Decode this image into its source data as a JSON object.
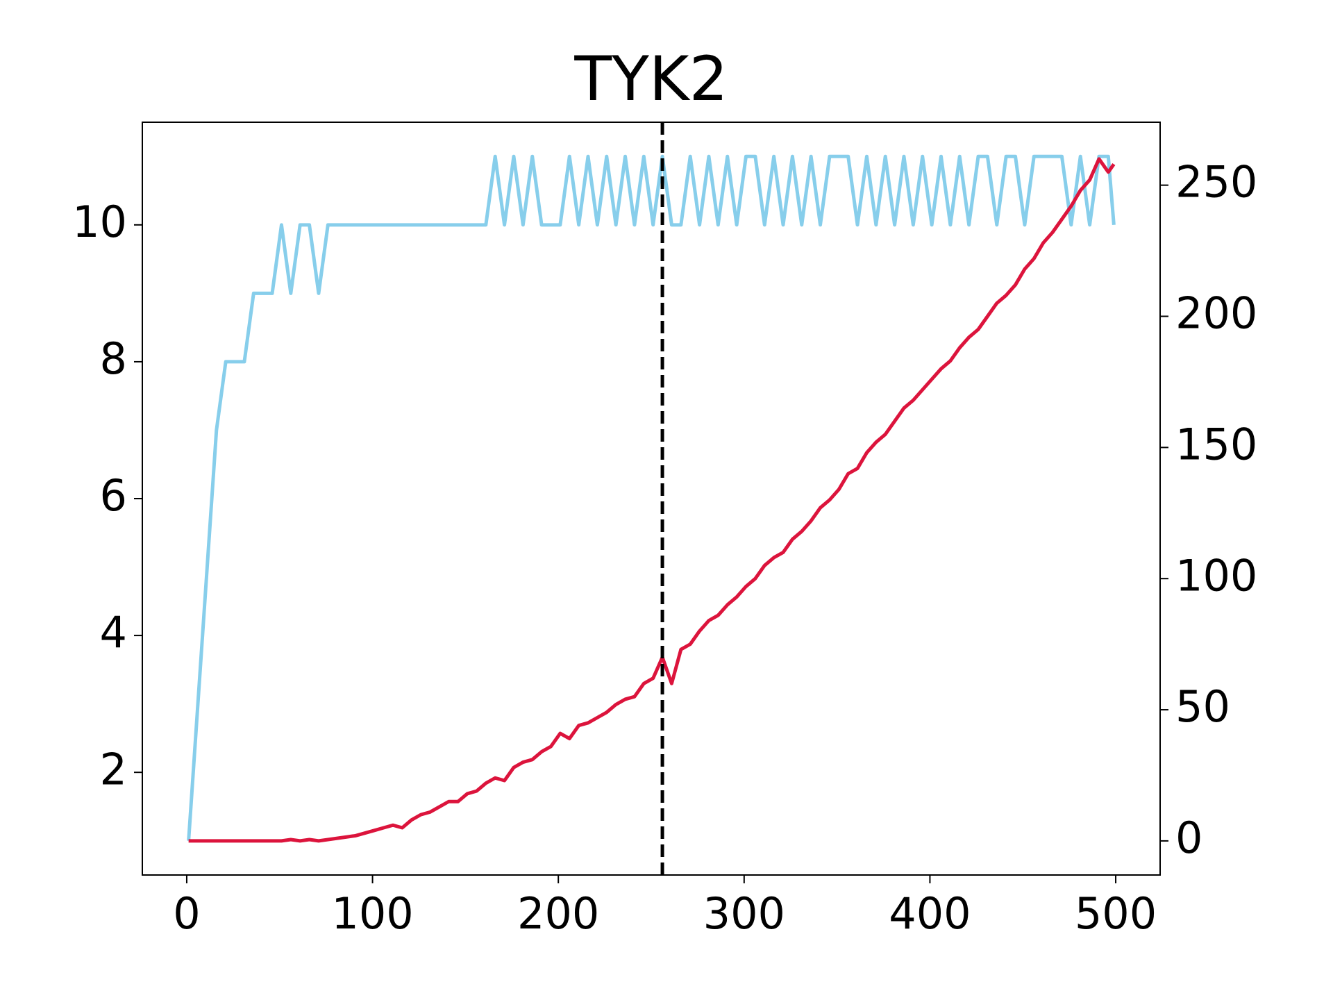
{
  "chart_data": {
    "type": "line",
    "title": "TYK2",
    "x": [
      1,
      6,
      11,
      16,
      21,
      26,
      31,
      36,
      41,
      46,
      51,
      56,
      61,
      66,
      71,
      76,
      81,
      86,
      91,
      96,
      101,
      106,
      111,
      116,
      121,
      126,
      131,
      136,
      141,
      146,
      151,
      156,
      161,
      166,
      171,
      176,
      181,
      186,
      191,
      196,
      201,
      206,
      211,
      216,
      221,
      226,
      231,
      236,
      241,
      246,
      251,
      256,
      261,
      266,
      271,
      276,
      281,
      286,
      291,
      296,
      301,
      306,
      311,
      316,
      321,
      326,
      331,
      336,
      341,
      346,
      351,
      356,
      361,
      366,
      371,
      376,
      381,
      386,
      391,
      396,
      401,
      406,
      411,
      416,
      421,
      426,
      431,
      436,
      441,
      446,
      451,
      456,
      461,
      466,
      471,
      476,
      481,
      486,
      491,
      496,
      499
    ],
    "series": [
      {
        "color": "#87ceeb",
        "values": [
          1,
          3,
          5,
          7,
          8,
          8,
          8,
          9,
          9,
          9,
          10,
          9,
          10,
          10,
          9,
          10,
          10,
          10,
          10,
          10,
          10,
          10,
          10,
          10,
          10,
          10,
          10,
          10,
          10,
          10,
          10,
          10,
          10,
          11,
          10,
          11,
          10,
          11,
          10,
          10,
          10,
          11,
          10,
          11,
          10,
          11,
          10,
          11,
          10,
          11,
          10,
          11,
          10,
          10,
          11,
          10,
          11,
          10,
          11,
          10,
          11,
          11,
          10,
          11,
          10,
          11,
          10,
          11,
          10,
          11,
          11,
          11,
          10,
          11,
          10,
          11,
          10,
          11,
          10,
          11,
          10,
          11,
          10,
          11,
          10,
          11,
          11,
          10,
          11,
          11,
          10,
          11,
          11,
          11,
          11,
          10,
          11,
          10,
          11,
          11,
          10
        ]
      },
      {
        "color": "#dc143c",
        "axis": "y2",
        "values": [
          0,
          0,
          0,
          0,
          0,
          0,
          0,
          0,
          0,
          0,
          0,
          0.5,
          0,
          0.5,
          0,
          0.5,
          1,
          1.5,
          2,
          3,
          4,
          5,
          6,
          5,
          8,
          10,
          11,
          13,
          15,
          15,
          18,
          19,
          22,
          24,
          23,
          28,
          30,
          31,
          34,
          36,
          41,
          39,
          44,
          45,
          47,
          49,
          52,
          54,
          55,
          60,
          62,
          70,
          60,
          73,
          75,
          80,
          84,
          86,
          90,
          93,
          97,
          100,
          105,
          108,
          110,
          115,
          118,
          122,
          127,
          130,
          134,
          140,
          142,
          148,
          152,
          155,
          160,
          165,
          168,
          172,
          176,
          180,
          183,
          188,
          192,
          195,
          200,
          205,
          208,
          212,
          218,
          222,
          228,
          232,
          237,
          242,
          248,
          252,
          260,
          255,
          258
        ]
      }
    ],
    "vline": 256,
    "xlim": [
      -23.9,
      523.9
    ],
    "xticks": [
      0,
      100,
      200,
      300,
      400,
      500
    ],
    "ylim": [
      0.5,
      11.5
    ],
    "yticks": [
      2,
      4,
      6,
      8,
      10
    ],
    "y2lim": [
      -13,
      274
    ],
    "y2ticks": [
      0,
      50,
      100,
      150,
      200,
      250
    ]
  }
}
